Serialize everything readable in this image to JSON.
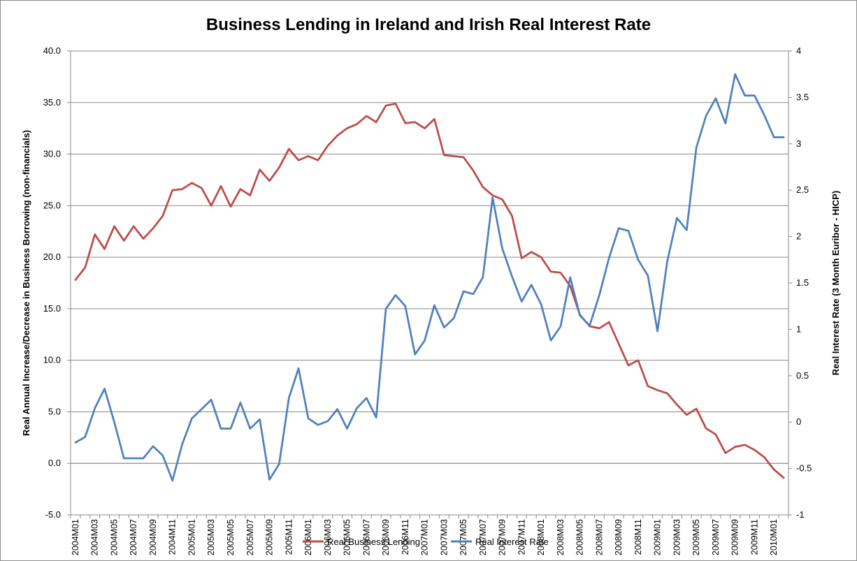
{
  "chart_data": {
    "type": "line",
    "title": "Business Lending in Ireland and Irish Real Interest Rate",
    "ylabel_left": "Real Annual Increase/Decrease in Business Borrowing (non-financials)",
    "ylabel_right": "Real Interest Rate (3 Month Euribor - HICP)",
    "ylim_left": [
      -5,
      40
    ],
    "ylim_right": [
      -1,
      4
    ],
    "yticks_left": [
      "-5.0",
      "0.0",
      "5.0",
      "10.0",
      "15.0",
      "20.0",
      "25.0",
      "30.0",
      "35.0",
      "40.0"
    ],
    "yticks_right": [
      "-1",
      "-0.5",
      "0",
      "0.5",
      "1",
      "1.5",
      "2",
      "2.5",
      "3",
      "3.5",
      "4"
    ],
    "grid": "horizontal",
    "legend_position": "bottom",
    "x": [
      "2004M01",
      "2004M02",
      "2004M03",
      "2004M04",
      "2004M05",
      "2004M06",
      "2004M07",
      "2004M08",
      "2004M09",
      "2004M10",
      "2004M11",
      "2004M12",
      "2005M01",
      "2005M02",
      "2005M03",
      "2005M04",
      "2005M05",
      "2005M06",
      "2005M07",
      "2005M08",
      "2005M09",
      "2005M10",
      "2005M11",
      "2005M12",
      "2006M01",
      "2006M02",
      "2006M03",
      "2006M04",
      "2006M05",
      "2006M06",
      "2006M07",
      "2006M08",
      "2006M09",
      "2006M10",
      "2006M11",
      "2006M12",
      "2007M01",
      "2007M02",
      "2007M03",
      "2007M04",
      "2007M05",
      "2007M06",
      "2007M07",
      "2007M08",
      "2007M09",
      "2007M10",
      "2007M11",
      "2007M12",
      "2008M01",
      "2008M02",
      "2008M03",
      "2008M04",
      "2008M05",
      "2008M06",
      "2008M07",
      "2008M08",
      "2008M09",
      "2008M10",
      "2008M11",
      "2008M12",
      "2009M01",
      "2009M02",
      "2009M03",
      "2009M04",
      "2009M05",
      "2009M06",
      "2009M07",
      "2009M08",
      "2009M09",
      "2009M10",
      "2009M11",
      "2009M12",
      "2010M01",
      "2010M02"
    ],
    "xtick_labels": [
      "2004M01",
      "2004M03",
      "2004M05",
      "2004M07",
      "2004M09",
      "2004M11",
      "2005M01",
      "2005M03",
      "2005M05",
      "2005M07",
      "2005M09",
      "2005M11",
      "2006M01",
      "2006M03",
      "2006M05",
      "2006M07",
      "2006M09",
      "2006M11",
      "2007M01",
      "2007M03",
      "2007M05",
      "2007M07",
      "2007M09",
      "2007M11",
      "2008M01",
      "2008M03",
      "2008M05",
      "2008M07",
      "2008M09",
      "2008M11",
      "2009M01",
      "2009M03",
      "2009M05",
      "2009M07",
      "2009M09",
      "2009M11",
      "2010M01"
    ],
    "series": [
      {
        "name": "Real Business Lending",
        "axis": "left",
        "color": "#be4b48",
        "values": [
          17.8,
          19.0,
          22.2,
          20.8,
          23.0,
          21.6,
          23.0,
          21.8,
          22.8,
          24.0,
          26.5,
          26.6,
          27.2,
          26.7,
          25.0,
          26.9,
          24.9,
          26.6,
          26.0,
          28.5,
          27.4,
          28.7,
          30.5,
          29.4,
          29.8,
          29.4,
          30.8,
          31.8,
          32.5,
          32.9,
          33.7,
          33.1,
          34.7,
          34.9,
          33.0,
          33.1,
          32.5,
          33.4,
          29.9,
          29.8,
          29.7,
          28.4,
          26.8,
          26.0,
          25.6,
          24.0,
          19.9,
          20.5,
          20.0,
          18.6,
          18.5,
          17.2,
          14.4,
          13.3,
          13.1,
          13.7,
          11.6,
          9.5,
          10.0,
          7.5,
          7.1,
          6.8,
          5.7,
          4.7,
          5.3,
          3.4,
          2.8,
          1.0,
          1.6,
          1.8,
          1.3,
          0.6,
          -0.6,
          -1.4
        ]
      },
      {
        "name": "Real Interest Rate",
        "axis": "right",
        "color": "#4f81bd",
        "values": [
          -0.22,
          -0.16,
          0.15,
          0.36,
          0.0,
          -0.39,
          -0.39,
          -0.39,
          -0.26,
          -0.36,
          -0.63,
          -0.24,
          0.04,
          0.14,
          0.24,
          -0.07,
          -0.07,
          0.21,
          -0.07,
          0.03,
          -0.62,
          -0.45,
          0.26,
          0.58,
          0.04,
          -0.03,
          0.01,
          0.14,
          -0.07,
          0.15,
          0.26,
          0.05,
          1.22,
          1.37,
          1.25,
          0.73,
          0.88,
          1.26,
          1.02,
          1.12,
          1.41,
          1.38,
          1.56,
          2.42,
          1.87,
          1.57,
          1.3,
          1.48,
          1.27,
          0.88,
          1.03,
          1.56,
          1.15,
          1.04,
          1.37,
          1.77,
          2.09,
          2.06,
          1.75,
          1.58,
          0.98,
          1.73,
          2.2,
          2.07,
          2.96,
          3.3,
          3.49,
          3.22,
          3.75,
          3.52,
          3.52,
          3.31,
          3.07,
          3.07
        ]
      }
    ]
  }
}
